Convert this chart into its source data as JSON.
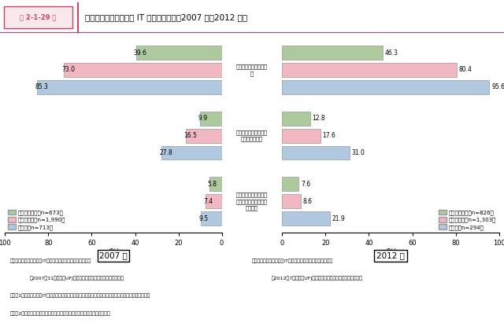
{
  "title_box": "第 2-1-29 図",
  "title": "規模別・利用形態別の IT の導入の状況（2007 年、2012 年）",
  "cat_labels": [
    "自社ホームページの開\n設",
    "自社サイトでの製品販\n売・予約受付等",
    "ネットショップ、ネッ\nトオークションへの出\n店・出品"
  ],
  "data_2007": {
    "small": [
      39.6,
      9.9,
      5.8
    ],
    "medium": [
      73.0,
      16.5,
      7.4
    ],
    "large": [
      85.3,
      27.8,
      9.5
    ]
  },
  "data_2012": {
    "small": [
      46.3,
      12.8,
      7.6
    ],
    "medium": [
      80.4,
      17.6,
      8.6
    ],
    "large": [
      95.6,
      31.0,
      21.9
    ]
  },
  "legend_2007_small": "小規模事業者（n=673）",
  "legend_2007_medium": "中規模企業（n=1,990）",
  "legend_2007_large": "大企業（n=713）",
  "legend_2012_small": "小規模事業者（n=826）",
  "legend_2012_medium": "中規模企業（n=1,303）",
  "legend_2012_large": "大企業（n=294）",
  "year_2007": "2007 年",
  "year_2012": "2012 年",
  "color_small": "#adc99e",
  "color_medium": "#f2b8c2",
  "color_large": "#b0c8e0",
  "color_edge": "#999999",
  "note1a": "資料：中小企業庁委託「ITの活用に関するアンケート調査」",
  "note1b": "（2007年11月、三菱UFJリサーチ＆コンサルティング（株））",
  "note2a": "資料：中小企業庁委託「ITの活用に関するアンケート調査」",
  "note2b": "（2012年7月、三菱UFJリサーチ＆コンサルティング（株））",
  "note3": "（注）1．各利用形態のITの導入の状況について「実施している」と回答した企業の割合を示している。",
  "note4": "　　　2．各項目によって回答企業数（回答比率算出時の母数）は異なる。"
}
